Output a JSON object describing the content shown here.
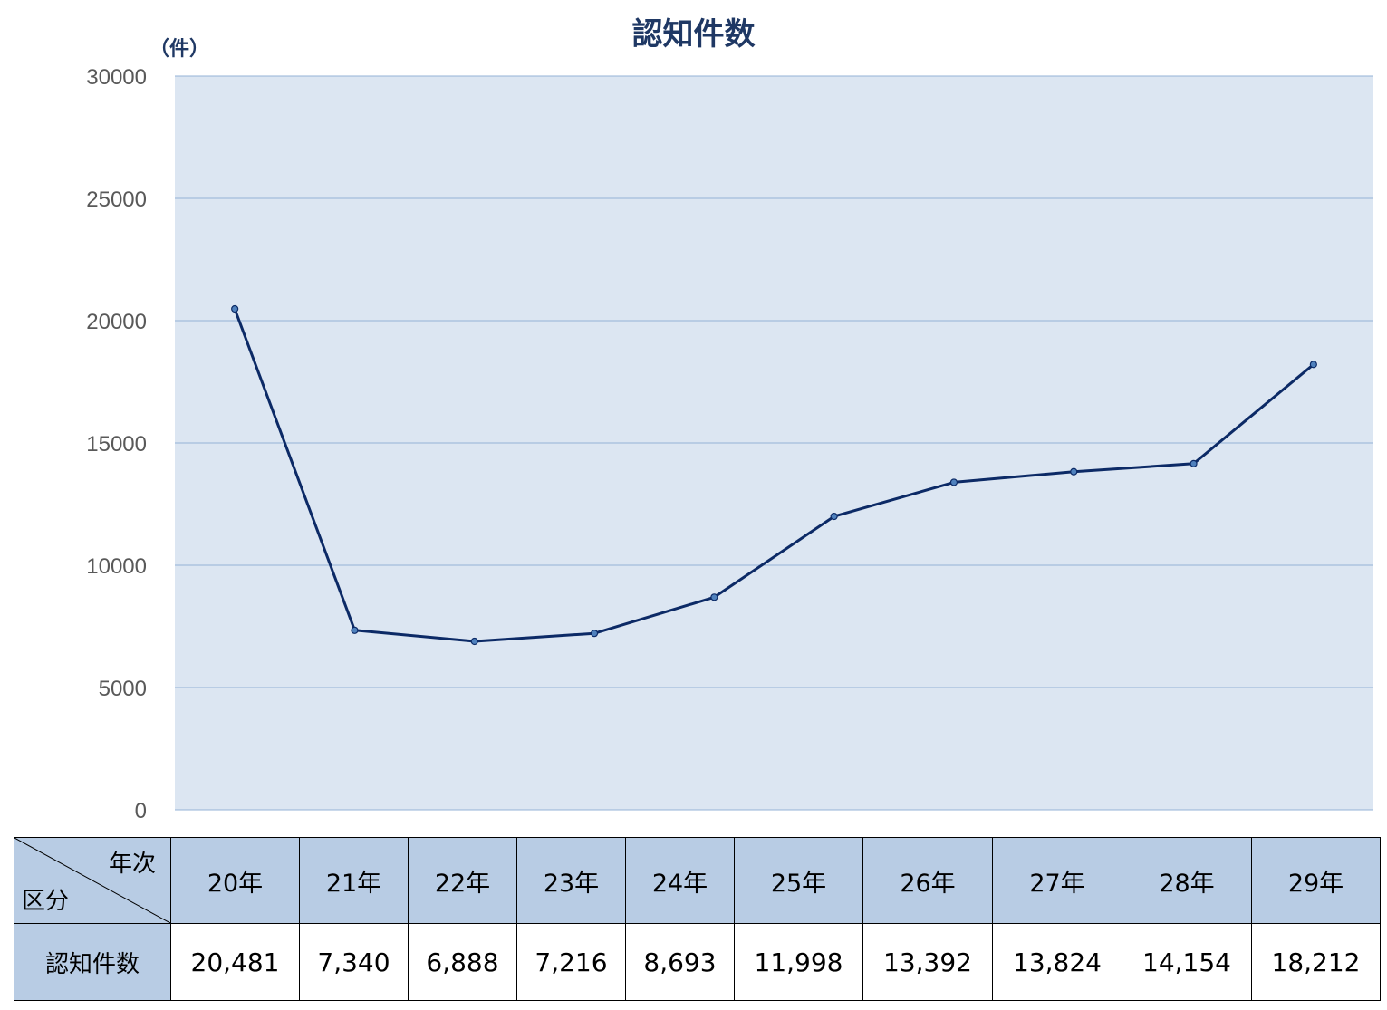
{
  "chart_data": {
    "type": "line",
    "title": "認知件数",
    "ylabel": "（件）",
    "ylim": [
      0,
      30000
    ],
    "yticks": [
      0,
      5000,
      10000,
      15000,
      20000,
      25000,
      30000
    ],
    "categories": [
      "20年",
      "21年",
      "22年",
      "23年",
      "24年",
      "25年",
      "26年",
      "27年",
      "28年",
      "29年"
    ],
    "series": [
      {
        "values": [
          20481,
          7340,
          6888,
          7216,
          8693,
          11998,
          13392,
          13824,
          14154,
          18212
        ]
      }
    ],
    "grid": true,
    "colors": {
      "line": "#0c2a66",
      "marker": "#4f81bd",
      "plot_bg": "#dce6f2",
      "gridline": "#95b3d7"
    }
  },
  "table": {
    "corner_top": "年次",
    "corner_bottom": "区分",
    "headers": [
      "20年",
      "21年",
      "22年",
      "23年",
      "24年",
      "25年",
      "26年",
      "27年",
      "28年",
      "29年"
    ],
    "row_label": "認知件数",
    "values": [
      "20,481",
      "7,340",
      "6,888",
      "7,216",
      "8,693",
      "11,998",
      "13,392",
      "13,824",
      "14,154",
      "18,212"
    ],
    "colors": {
      "header_bg": "#b8cce4"
    }
  }
}
